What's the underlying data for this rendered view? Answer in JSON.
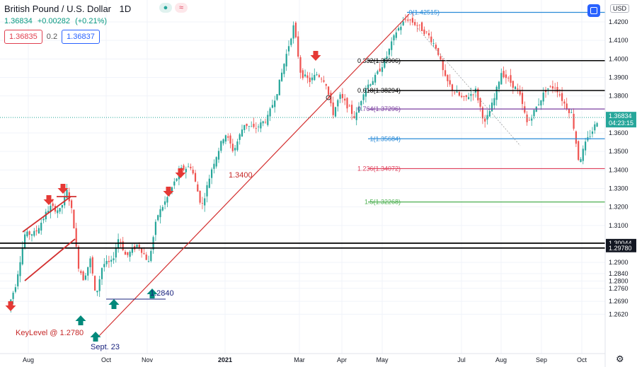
{
  "header": {
    "symbol": "British Pound / U.S. Dollar",
    "interval": "1D",
    "price": "1.36834",
    "change": "+0.00282",
    "change_pct": "(+0.21%)",
    "sell": "1.36835",
    "spread": "0.2",
    "buy": "1.36837",
    "currency": "USD",
    "icon_dot": "●",
    "icon_wave": "≈"
  },
  "chart_data": {
    "type": "candlestick",
    "title": "British Pound / U.S. Dollar",
    "x_tick_labels": [
      "Aug",
      "Oct",
      "Nov",
      "2021",
      "Mar",
      "Apr",
      "May",
      "Jul",
      "Aug",
      "Sep",
      "Oct"
    ],
    "y_tick_labels": [
      1.42,
      1.41,
      1.4,
      1.39,
      1.38,
      1.36,
      1.35,
      1.34,
      1.33,
      1.32,
      1.31,
      1.29,
      1.284,
      1.28,
      1.276,
      1.269,
      1.262
    ],
    "ylim": [
      1.262,
      1.43
    ],
    "last_price": "1.36834",
    "countdown": "04:23:15",
    "fibonacci": [
      {
        "label": "0(1.42515)",
        "value": 1.42515,
        "color": "#2a8bd8"
      },
      {
        "label": "0.382(1.39906)",
        "value": 1.39906,
        "color": "#000000"
      },
      {
        "label": "0.618(1.38294)",
        "value": 1.38294,
        "color": "#000000"
      },
      {
        "label": "0.764(1.37296)",
        "value": 1.37296,
        "color": "#7b3fa0"
      },
      {
        "label": "1(1.35684)",
        "value": 1.35684,
        "color": "#2a8bd8"
      },
      {
        "label": "1.236(1.34072)",
        "value": 1.34072,
        "color": "#e0405b"
      },
      {
        "label": "1.5(1.32268)",
        "value": 1.32268,
        "color": "#4caf50"
      }
    ],
    "horizontal_levels": [
      {
        "value": 1.30044,
        "label": "1.30044"
      },
      {
        "value": 1.2978,
        "label": "1.29780"
      }
    ],
    "annotations": [
      {
        "text": "1.3400",
        "color": "#c62828"
      },
      {
        "text": "1.2840",
        "color": "#1a237e"
      },
      {
        "text": "KeyLevel @ 1.2780",
        "color": "#c62828"
      },
      {
        "text": "Sept. 23",
        "color": "#1a237e"
      }
    ],
    "colors": {
      "up": "#26a69a",
      "down": "#ef5350",
      "trendline": "#d32f2f",
      "arrow_down": "#e53935",
      "arrow_up": "#00897b"
    }
  }
}
